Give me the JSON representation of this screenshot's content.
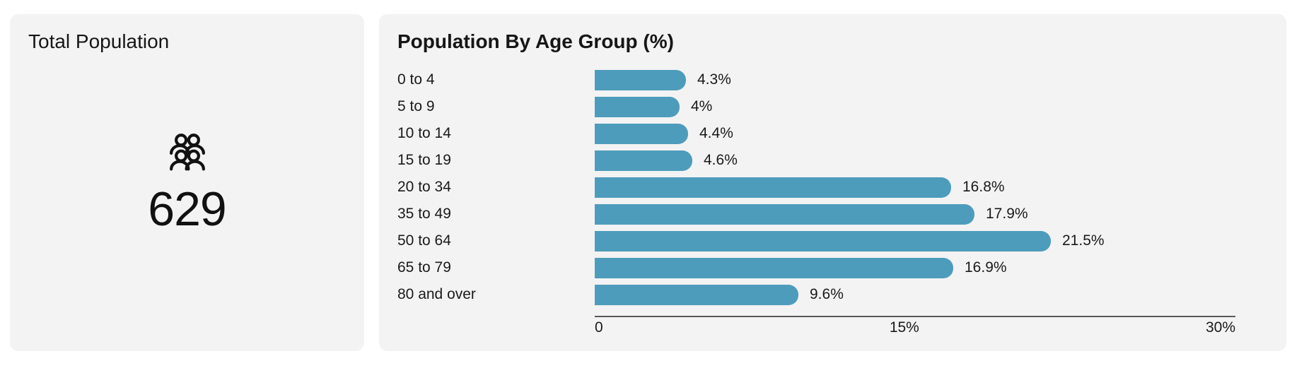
{
  "page": {
    "background": "#ffffff",
    "card_background": "#f3f3f3"
  },
  "total_card": {
    "title": "Total Population",
    "value": "629",
    "icon": "people-group-icon"
  },
  "chart_data": {
    "type": "bar",
    "orientation": "horizontal",
    "title": "Population By Age Group (%)",
    "categories": [
      "0 to 4",
      "5 to 9",
      "10 to 14",
      "15 to 19",
      "20 to 34",
      "35 to 49",
      "50 to 64",
      "65 to 79",
      "80 and over"
    ],
    "values": [
      4.3,
      4,
      4.4,
      4.6,
      16.8,
      17.9,
      21.5,
      16.9,
      9.6
    ],
    "value_labels": [
      "4.3%",
      "4%",
      "4.4%",
      "4.6%",
      "16.8%",
      "17.9%",
      "21.5%",
      "16.9%",
      "9.6%"
    ],
    "xlabel": "",
    "ylabel": "",
    "xlim": [
      0,
      30
    ],
    "x_ticks": [
      "0",
      "15%",
      "30%"
    ],
    "bar_color": "#4E9CBC",
    "axis_line_color": "#58595b",
    "grid": false,
    "legend": false
  }
}
